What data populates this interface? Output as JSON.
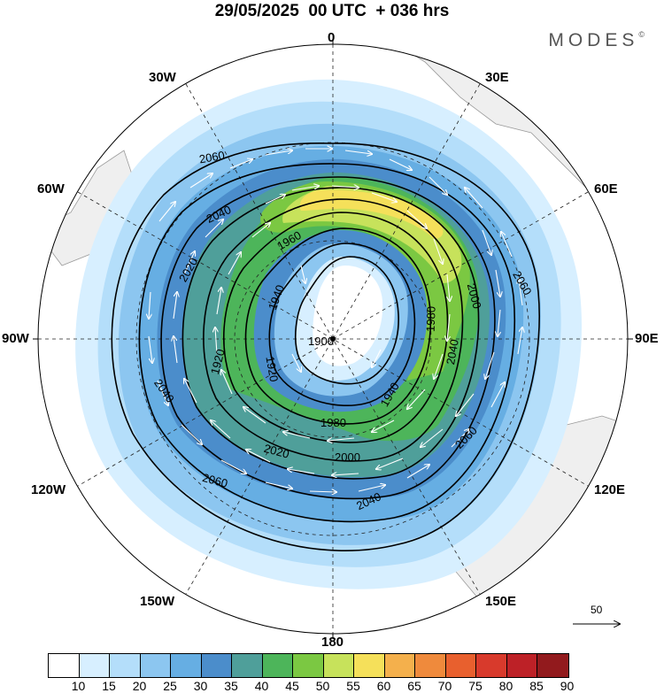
{
  "header": {
    "title": "29/05/2025  00 UTC  + 036 hrs",
    "brand": "MODES",
    "brand_mark": "©"
  },
  "longitude_labels": {
    "n0": "0",
    "n30e": "30E",
    "n60e": "60E",
    "n90e": "90E",
    "n120e": "120E",
    "n150e": "150E",
    "n180": "180",
    "n150w": "150W",
    "n120w": "120W",
    "n90w": "90W",
    "n60w": "60W",
    "n30w": "30W"
  },
  "contours": {
    "labels": [
      "2060",
      "2040",
      "2020",
      "1960",
      "1940",
      "1900",
      "1920",
      "1980",
      "2000",
      "2060",
      "2040",
      "1940",
      "1980",
      "2060",
      "2040",
      "2020",
      "2000",
      "2060",
      "2040",
      "1920"
    ],
    "levels": [
      "1900",
      "1920",
      "1940",
      "1960",
      "1980",
      "2000",
      "2020",
      "2040",
      "2060"
    ]
  },
  "reference_vector": {
    "label": "50"
  },
  "colorbar": {
    "ticks": [
      "10",
      "15",
      "20",
      "25",
      "30",
      "35",
      "40",
      "45",
      "50",
      "55",
      "60",
      "65",
      "70",
      "75",
      "80",
      "85",
      "90"
    ],
    "colors": [
      "#ffffff",
      "#d7efff",
      "#b4defa",
      "#8cc6f0",
      "#66aee3",
      "#4b8dcb",
      "#4f9f9a",
      "#4db55a",
      "#7bc842",
      "#c7e25b",
      "#f5e05a",
      "#f4b04c",
      "#ef8a3c",
      "#e8602e",
      "#d83a2c",
      "#bd2127",
      "#921a1d"
    ]
  }
}
